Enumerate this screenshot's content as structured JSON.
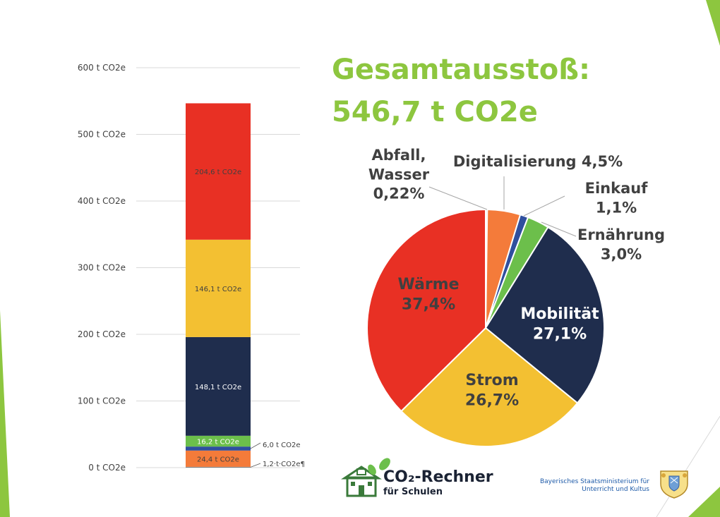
{
  "title": {
    "line1": "Gesamtausstoß:",
    "line2": "546,7 t CO2e"
  },
  "chart_data": [
    {
      "type": "bar",
      "stacked": true,
      "categories": [
        ""
      ],
      "ylim": [
        0,
        600
      ],
      "y_ticks": [
        {
          "value": 0,
          "label": "0 t CO2e"
        },
        {
          "value": 100,
          "label": "100 t CO2e"
        },
        {
          "value": 200,
          "label": "200 t CO2e"
        },
        {
          "value": 300,
          "label": "300 t CO2e"
        },
        {
          "value": 400,
          "label": "400 t CO2e"
        },
        {
          "value": 500,
          "label": "500 t CO2e"
        },
        {
          "value": 600,
          "label": "600 t CO2e"
        }
      ],
      "grid": true,
      "segments": [
        {
          "value": 1.2,
          "label": "1,2·t·CO2e¶",
          "color": "#7f7f7f",
          "label_outside": true
        },
        {
          "value": 24.4,
          "label": "24,4 t CO2e",
          "color": "#f47b3a",
          "label_outside": false
        },
        {
          "value": 6.0,
          "label": "6,0 t CO2e",
          "color": "#2f4f9e",
          "label_outside": true
        },
        {
          "value": 16.2,
          "label": "16,2 t CO2e",
          "color": "#6cbf4b",
          "label_outside": false
        },
        {
          "value": 148.1,
          "label": "148,1 t CO2e",
          "color": "#1f2d4d",
          "label_outside": false
        },
        {
          "value": 146.1,
          "label": "146,1 t CO2e",
          "color": "#f3c032",
          "label_outside": false
        },
        {
          "value": 204.6,
          "label": "204,6 t CO2e",
          "color": "#e83024",
          "label_outside": false
        }
      ]
    },
    {
      "type": "pie",
      "slices": [
        {
          "name": "Abfall, Wasser",
          "percent_label": "0,22%",
          "value": 0.22,
          "color": "#bfbfbf",
          "label_lines": [
            "Abfall,",
            "Wasser",
            "0,22%"
          ]
        },
        {
          "name": "Digitalisierung",
          "percent_label": "4,5%",
          "value": 4.5,
          "color": "#f47b3a",
          "label_lines": [
            "Digitalisierung 4,5%"
          ]
        },
        {
          "name": "Einkauf",
          "percent_label": "1,1%",
          "value": 1.1,
          "color": "#2f4f9e",
          "label_lines": [
            "Einkauf",
            "1,1%"
          ]
        },
        {
          "name": "Ernährung",
          "percent_label": "3,0%",
          "value": 3.0,
          "color": "#6cbf4b",
          "label_lines": [
            "Ernährung",
            "3,0%"
          ]
        },
        {
          "name": "Mobilität",
          "percent_label": "27,1%",
          "value": 27.1,
          "color": "#1f2d4d",
          "label_lines": [
            "Mobilität",
            "27,1%"
          ]
        },
        {
          "name": "Strom",
          "percent_label": "26,7%",
          "value": 26.7,
          "color": "#f3c032",
          "label_lines": [
            "Strom",
            "26,7%"
          ]
        },
        {
          "name": "Wärme",
          "percent_label": "37,4%",
          "value": 37.4,
          "color": "#e83024",
          "label_lines": [
            "Wärme",
            "37,4%"
          ]
        }
      ]
    }
  ],
  "logos": {
    "rechner_main": "CO₂-Rechner",
    "rechner_sub": "für Schulen",
    "ministry_line1": "Bayerisches Staatsministerium für",
    "ministry_line2": "Unterricht und Kultus"
  },
  "colors": {
    "accent_green": "#8dc63f",
    "light_green": "#c5dc6a"
  }
}
